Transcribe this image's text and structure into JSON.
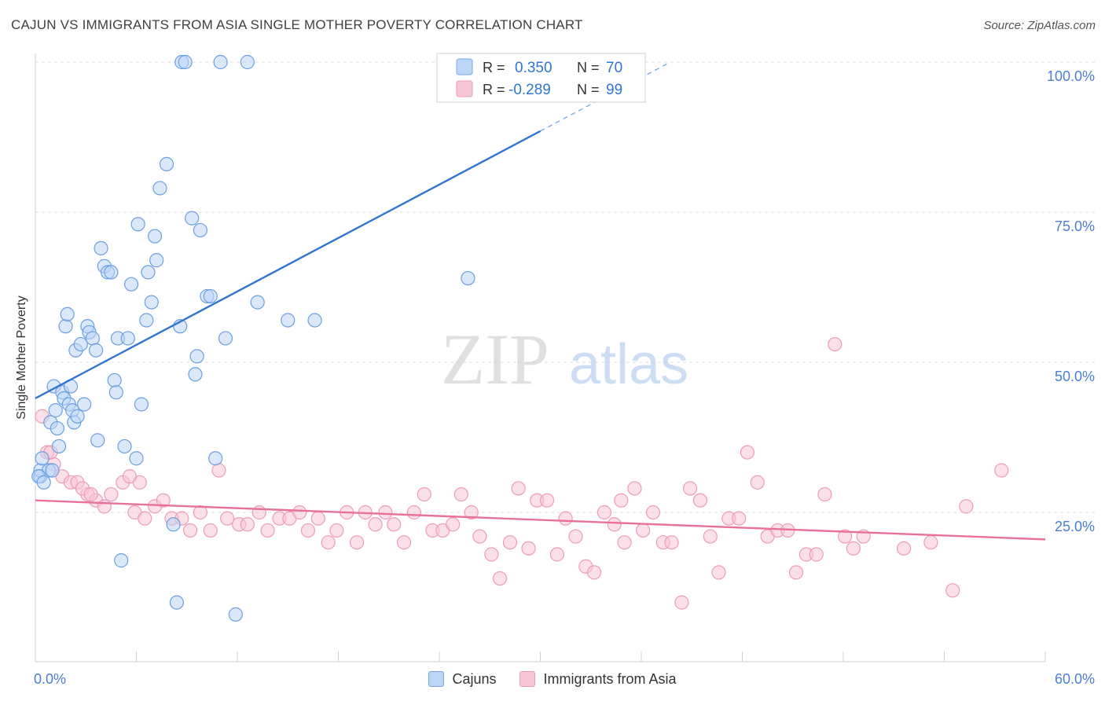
{
  "title": "CAJUN VS IMMIGRANTS FROM ASIA SINGLE MOTHER POVERTY CORRELATION CHART",
  "source": "Source: ZipAtlas.com",
  "watermark": {
    "zip": "ZIP",
    "atlas": "atlas"
  },
  "legend_top": [
    {
      "r_label": "R =",
      "r_value": "0.350",
      "n_label": "N =",
      "n_value": "70"
    },
    {
      "r_label": "R =",
      "r_value": "-0.289",
      "n_label": "N =",
      "n_value": "99"
    }
  ],
  "legend_bottom": [
    "Cajuns",
    "Immigrants from Asia"
  ],
  "colors": {
    "cajun_fill": "#bcd6f5",
    "cajun_stroke": "#6c9fe0",
    "cajun_line": "#2f76d0",
    "asia_fill": "#f8c7d6",
    "asia_stroke": "#ee9cb6",
    "asia_line": "#e8719a",
    "tick_label": "#4a7fd4",
    "grid": "#dedede"
  },
  "chart_data": {
    "type": "scatter",
    "title": "CAJUN VS IMMIGRANTS FROM ASIA SINGLE MOTHER POVERTY CORRELATION CHART",
    "xlabel": "",
    "ylabel": "Single Mother Poverty",
    "xlim": [
      0,
      60
    ],
    "ylim": [
      0,
      102
    ],
    "x_tick_labels": [
      "0.0%",
      "60.0%"
    ],
    "y_ticks": [
      25,
      50,
      75,
      100
    ],
    "y_tick_labels": [
      "25.0%",
      "50.0%",
      "75.0%",
      "100.0%"
    ],
    "grid": "horizontal dashed",
    "series": [
      {
        "name": "Cajuns",
        "R": 0.35,
        "N": 70,
        "trend": {
          "x": [
            0,
            30
          ],
          "y": [
            44,
            88.5
          ],
          "dashed_to": [
            37.6,
            99.8
          ]
        },
        "points": [
          [
            0.3,
            31
          ],
          [
            0.3,
            32
          ],
          [
            0.4,
            34
          ],
          [
            0.8,
            32
          ],
          [
            0.9,
            40
          ],
          [
            1,
            32
          ],
          [
            1.1,
            46
          ],
          [
            1.2,
            42
          ],
          [
            1.4,
            36
          ],
          [
            1.6,
            45
          ],
          [
            1.7,
            44
          ],
          [
            1.8,
            56
          ],
          [
            1.9,
            58
          ],
          [
            2,
            43
          ],
          [
            2.2,
            42
          ],
          [
            2.3,
            40
          ],
          [
            2.4,
            52
          ],
          [
            2.5,
            41
          ],
          [
            2.7,
            53
          ],
          [
            2.9,
            43
          ],
          [
            3.1,
            56
          ],
          [
            3.2,
            55
          ],
          [
            3.4,
            54
          ],
          [
            3.6,
            52
          ],
          [
            3.7,
            37
          ],
          [
            3.9,
            69
          ],
          [
            4.1,
            66
          ],
          [
            4.3,
            65
          ],
          [
            4.5,
            65
          ],
          [
            4.7,
            47
          ],
          [
            4.8,
            45
          ],
          [
            4.9,
            54
          ],
          [
            5.1,
            17
          ],
          [
            5.3,
            36
          ],
          [
            5.5,
            54
          ],
          [
            5.7,
            63
          ],
          [
            6,
            34
          ],
          [
            6.1,
            73
          ],
          [
            6.3,
            43
          ],
          [
            6.7,
            65
          ],
          [
            6.9,
            60
          ],
          [
            7.1,
            71
          ],
          [
            7.2,
            67
          ],
          [
            7.4,
            79
          ],
          [
            7.8,
            83
          ],
          [
            8.2,
            23
          ],
          [
            8.4,
            10
          ],
          [
            8.6,
            56
          ],
          [
            8.7,
            100
          ],
          [
            8.9,
            100
          ],
          [
            9.3,
            74
          ],
          [
            9.5,
            48
          ],
          [
            9.6,
            51
          ],
          [
            9.8,
            72
          ],
          [
            10.2,
            61
          ],
          [
            10.4,
            61
          ],
          [
            10.7,
            34
          ],
          [
            11,
            100
          ],
          [
            11.3,
            54
          ],
          [
            11.9,
            8
          ],
          [
            12.6,
            100
          ],
          [
            13.2,
            60
          ],
          [
            15,
            57
          ],
          [
            16.6,
            57
          ],
          [
            25.7,
            64
          ],
          [
            0.2,
            31
          ],
          [
            0.5,
            30
          ],
          [
            1.3,
            39
          ],
          [
            6.6,
            57
          ],
          [
            2.1,
            46
          ]
        ]
      },
      {
        "name": "Immigrants from Asia",
        "R": -0.289,
        "N": 99,
        "trend": {
          "x": [
            0,
            60
          ],
          "y": [
            27,
            20.5
          ]
        },
        "points": [
          [
            0.4,
            41
          ],
          [
            0.7,
            35
          ],
          [
            1.1,
            33
          ],
          [
            1.6,
            31
          ],
          [
            2.1,
            30
          ],
          [
            2.5,
            30
          ],
          [
            3.1,
            28
          ],
          [
            3.6,
            27
          ],
          [
            4.1,
            26
          ],
          [
            4.5,
            28
          ],
          [
            5.2,
            30
          ],
          [
            5.9,
            25
          ],
          [
            6.5,
            24
          ],
          [
            7.1,
            26
          ],
          [
            7.6,
            27
          ],
          [
            8.1,
            24
          ],
          [
            8.7,
            24
          ],
          [
            9.2,
            22
          ],
          [
            9.8,
            25
          ],
          [
            10.4,
            22
          ],
          [
            10.9,
            32
          ],
          [
            11.4,
            24
          ],
          [
            12.1,
            23
          ],
          [
            12.6,
            23
          ],
          [
            13.3,
            25
          ],
          [
            13.8,
            22
          ],
          [
            14.5,
            24
          ],
          [
            15.1,
            24
          ],
          [
            15.7,
            25
          ],
          [
            16.2,
            22
          ],
          [
            16.8,
            24
          ],
          [
            17.4,
            20
          ],
          [
            17.9,
            22
          ],
          [
            18.5,
            25
          ],
          [
            19.1,
            20
          ],
          [
            19.6,
            25
          ],
          [
            20.2,
            23
          ],
          [
            20.8,
            25
          ],
          [
            21.3,
            23
          ],
          [
            21.9,
            20
          ],
          [
            22.5,
            25
          ],
          [
            23.1,
            28
          ],
          [
            23.6,
            22
          ],
          [
            24.2,
            22
          ],
          [
            24.8,
            23
          ],
          [
            25.3,
            28
          ],
          [
            25.9,
            25
          ],
          [
            26.4,
            21
          ],
          [
            27.1,
            18
          ],
          [
            27.6,
            14
          ],
          [
            28.2,
            20
          ],
          [
            28.7,
            29
          ],
          [
            29.3,
            19
          ],
          [
            29.8,
            27
          ],
          [
            30.4,
            27
          ],
          [
            31,
            18
          ],
          [
            31.5,
            24
          ],
          [
            32.1,
            21
          ],
          [
            32.7,
            16
          ],
          [
            33.2,
            15
          ],
          [
            33.8,
            25
          ],
          [
            34.4,
            23
          ],
          [
            35,
            20
          ],
          [
            35.6,
            29
          ],
          [
            36.1,
            22
          ],
          [
            36.7,
            25
          ],
          [
            37.3,
            20
          ],
          [
            37.8,
            20
          ],
          [
            38.4,
            10
          ],
          [
            38.9,
            29
          ],
          [
            39.5,
            27
          ],
          [
            40.1,
            21
          ],
          [
            40.6,
            15
          ],
          [
            41.2,
            24
          ],
          [
            41.8,
            24
          ],
          [
            42.3,
            35
          ],
          [
            42.9,
            30
          ],
          [
            43.5,
            21
          ],
          [
            44.1,
            22
          ],
          [
            44.7,
            22
          ],
          [
            45.2,
            15
          ],
          [
            45.8,
            18
          ],
          [
            46.4,
            18
          ],
          [
            46.9,
            28
          ],
          [
            47.5,
            53
          ],
          [
            48.1,
            21
          ],
          [
            48.6,
            19
          ],
          [
            49.2,
            21
          ],
          [
            51.6,
            19
          ],
          [
            54.5,
            12
          ],
          [
            55.3,
            26
          ],
          [
            57.4,
            32
          ],
          [
            53.2,
            20
          ],
          [
            34.8,
            27
          ],
          [
            6.2,
            30
          ],
          [
            0.9,
            35
          ],
          [
            2.8,
            29
          ],
          [
            5.6,
            31
          ],
          [
            3.3,
            28
          ]
        ]
      }
    ]
  }
}
